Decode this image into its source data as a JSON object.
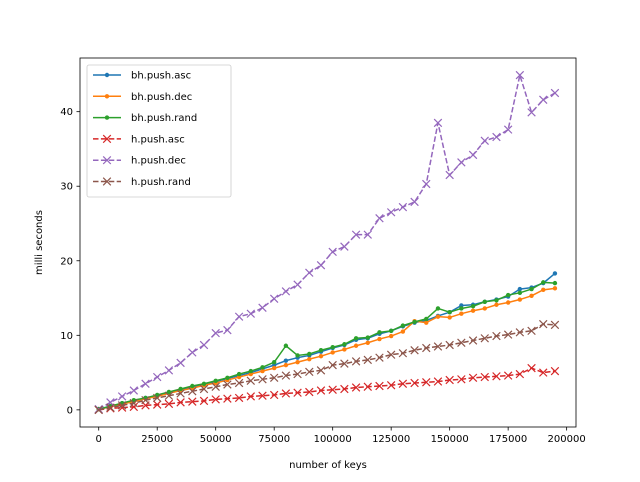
{
  "chart_data": {
    "type": "line",
    "title": "",
    "xlabel": "number of keys",
    "ylabel": "milli seconds",
    "xlim": [
      -8000,
      204000
    ],
    "ylim": [
      -2.3,
      47.2
    ],
    "x_ticks": [
      0,
      25000,
      50000,
      75000,
      100000,
      125000,
      150000,
      175000,
      200000
    ],
    "y_ticks": [
      0,
      10,
      20,
      30,
      40
    ],
    "grid": false,
    "legend_position": "top-left",
    "x": [
      0,
      5000,
      10000,
      15000,
      20000,
      25000,
      30000,
      35000,
      40000,
      45000,
      50000,
      55000,
      60000,
      65000,
      70000,
      75000,
      80000,
      85000,
      90000,
      95000,
      100000,
      105000,
      110000,
      115000,
      120000,
      125000,
      130000,
      135000,
      140000,
      145000,
      150000,
      155000,
      160000,
      165000,
      170000,
      175000,
      180000,
      185000,
      190000,
      195000
    ],
    "series": [
      {
        "name": "bh.push.asc",
        "color": "#1f77b4",
        "dash": false,
        "marker": "dot",
        "values": [
          0.1,
          0.4,
          0.9,
          1.2,
          1.6,
          1.9,
          2.3,
          2.7,
          3.0,
          3.4,
          3.8,
          4.2,
          4.6,
          5.0,
          5.5,
          6.0,
          6.6,
          7.0,
          7.3,
          7.8,
          8.3,
          8.7,
          9.4,
          9.6,
          10.2,
          10.6,
          11.2,
          11.7,
          12.0,
          12.6,
          13.1,
          14.0,
          14.1,
          14.5,
          14.8,
          15.2,
          16.2,
          16.4,
          17.0,
          18.3
        ]
      },
      {
        "name": "bh.push.dec",
        "color": "#ff7f0e",
        "dash": false,
        "marker": "dot",
        "values": [
          0.1,
          0.4,
          0.8,
          1.1,
          1.5,
          1.8,
          2.2,
          2.6,
          2.9,
          3.3,
          3.6,
          4.0,
          4.4,
          4.8,
          5.2,
          5.6,
          6.0,
          6.4,
          6.8,
          7.2,
          7.7,
          8.1,
          8.6,
          9.0,
          9.5,
          9.9,
          10.5,
          11.9,
          11.7,
          12.5,
          12.4,
          12.9,
          13.3,
          13.6,
          14.1,
          14.4,
          14.8,
          15.3,
          16.1,
          16.3
        ]
      },
      {
        "name": "bh.push.rand",
        "color": "#2ca02c",
        "dash": false,
        "marker": "dot",
        "values": [
          0.1,
          0.5,
          0.9,
          1.3,
          1.6,
          2.0,
          2.4,
          2.8,
          3.2,
          3.5,
          3.9,
          4.3,
          4.8,
          5.2,
          5.7,
          6.4,
          8.6,
          7.3,
          7.5,
          8.0,
          8.4,
          8.8,
          9.6,
          9.7,
          10.4,
          10.6,
          11.3,
          11.8,
          12.2,
          13.6,
          13.1,
          13.6,
          13.9,
          14.5,
          14.7,
          15.4,
          15.7,
          16.2,
          17.1,
          17.0
        ]
      },
      {
        "name": "h.push.asc",
        "color": "#d62728",
        "dash": true,
        "marker": "x",
        "values": [
          0.0,
          0.2,
          0.3,
          0.4,
          0.6,
          0.7,
          0.8,
          1.0,
          1.1,
          1.2,
          1.4,
          1.5,
          1.6,
          1.8,
          1.9,
          2.0,
          2.2,
          2.3,
          2.4,
          2.6,
          2.7,
          2.8,
          3.0,
          3.1,
          3.2,
          3.3,
          3.5,
          3.6,
          3.7,
          3.8,
          4.0,
          4.1,
          4.3,
          4.4,
          4.5,
          4.6,
          4.8,
          5.6,
          5.0,
          5.2
        ]
      },
      {
        "name": "h.push.dec",
        "color": "#9467bd",
        "dash": true,
        "marker": "x",
        "values": [
          0.1,
          1.0,
          1.8,
          2.6,
          3.5,
          4.4,
          5.3,
          6.3,
          7.7,
          8.7,
          10.3,
          10.7,
          12.5,
          12.9,
          13.7,
          14.9,
          15.9,
          16.8,
          18.4,
          19.4,
          21.2,
          21.9,
          23.5,
          23.5,
          25.7,
          26.5,
          27.2,
          27.9,
          30.3,
          38.5,
          31.5,
          33.2,
          34.2,
          36.1,
          36.6,
          37.6,
          44.9,
          39.9,
          41.6,
          42.5
        ]
      },
      {
        "name": "h.push.rand",
        "color": "#8c564b",
        "dash": true,
        "marker": "x",
        "values": [
          0.0,
          0.3,
          0.6,
          0.9,
          1.3,
          1.6,
          1.9,
          2.2,
          2.5,
          2.8,
          3.1,
          3.4,
          3.6,
          3.9,
          4.1,
          4.3,
          4.6,
          4.8,
          5.1,
          5.3,
          6.0,
          6.2,
          6.5,
          6.7,
          7.0,
          7.4,
          7.6,
          8.0,
          8.3,
          8.5,
          8.7,
          9.0,
          9.3,
          9.6,
          9.9,
          10.1,
          10.4,
          10.6,
          11.5,
          11.4
        ]
      }
    ]
  }
}
